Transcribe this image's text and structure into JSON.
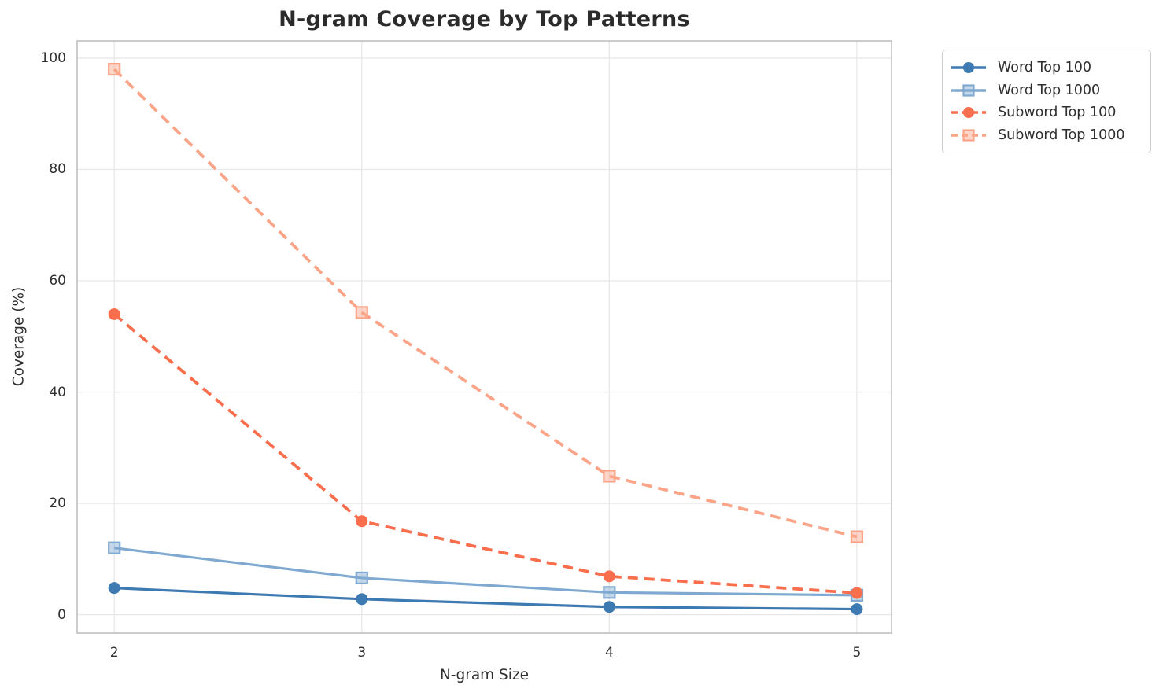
{
  "chart_data": {
    "type": "line",
    "title": "N-gram Coverage by Top Patterns",
    "xlabel": "N-gram Size",
    "ylabel": "Coverage (%)",
    "x": [
      2,
      3,
      4,
      5
    ],
    "x_ticks": [
      2,
      3,
      4,
      5
    ],
    "y_ticks": [
      0,
      20,
      40,
      60,
      80,
      100
    ],
    "xlim": [
      1.85,
      5.14
    ],
    "ylim": [
      -3.3,
      103.1
    ],
    "grid": true,
    "legend_position": "outside-upper-right",
    "series": [
      {
        "name": "Word Top 100",
        "values": [
          4.8,
          2.8,
          1.4,
          1.0
        ],
        "color": "#3d7ab2",
        "line_style": "solid",
        "marker": "circle"
      },
      {
        "name": "Word Top 1000",
        "values": [
          12.0,
          6.6,
          4.0,
          3.5
        ],
        "color": "#7fa9d1",
        "line_style": "solid",
        "marker": "square"
      },
      {
        "name": "Subword Top 100",
        "values": [
          54.0,
          16.8,
          6.9,
          3.9
        ],
        "color": "#f96f4e",
        "line_style": "dashed",
        "marker": "circle"
      },
      {
        "name": "Subword Top 1000",
        "values": [
          98.0,
          54.3,
          24.9,
          14.0
        ],
        "color": "#fba488",
        "line_style": "dashed",
        "marker": "square"
      }
    ]
  },
  "style_colors": {
    "grid": "#e8e8e8",
    "spine": "#c6c6c6",
    "text": "#303030",
    "title": "#2b2b2b"
  }
}
